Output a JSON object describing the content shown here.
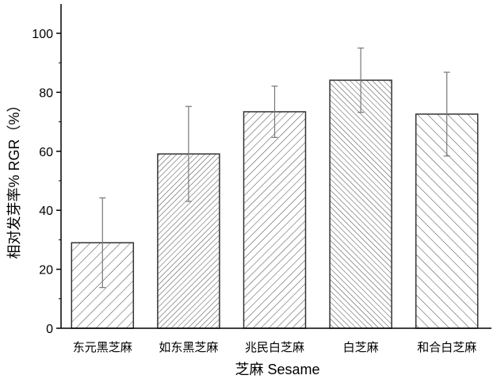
{
  "chart_data": {
    "type": "bar",
    "title": "",
    "xlabel": "芝麻  Sesame",
    "ylabel": "相对发芽率%  RGR（%）",
    "ylim": [
      0,
      105
    ],
    "yticks": [
      0,
      20,
      40,
      60,
      80,
      100
    ],
    "categories": [
      "东元黑芝麻",
      "如东黑芝麻",
      "兆民白芝麻",
      "白芝麻",
      "和合白芝麻"
    ],
    "values": [
      29.0,
      59.1,
      73.4,
      84.1,
      72.6
    ],
    "error": [
      15.2,
      16.1,
      8.7,
      10.9,
      14.2
    ],
    "patterns": [
      "fwd-sparse",
      "fwd-dense",
      "fwd-medium",
      "back-dense",
      "back-sparse"
    ],
    "grid": false,
    "legend": "none",
    "colors": {
      "bar_stroke": "#333333",
      "hatch": "#444444",
      "error_bar": "#777777"
    }
  }
}
